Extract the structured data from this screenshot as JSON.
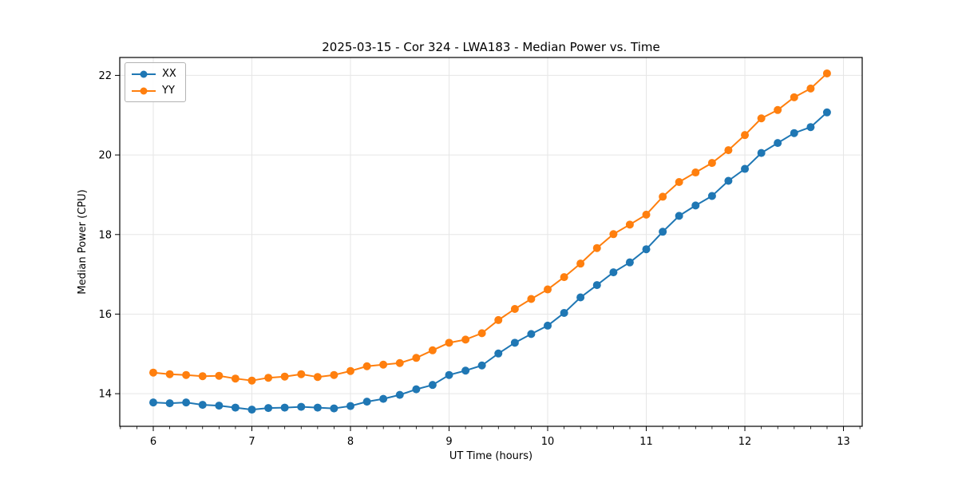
{
  "chart_data": {
    "type": "line",
    "title": "2025-03-15 - Cor 324 - LWA183 - Median Power vs. Time",
    "xlabel": "UT Time (hours)",
    "ylabel": "Median Power (CPU)",
    "xlim": [
      5.66,
      13.19
    ],
    "ylim": [
      13.18,
      22.45
    ],
    "xticks": [
      6,
      7,
      8,
      9,
      10,
      11,
      12,
      13
    ],
    "yticks": [
      14,
      16,
      18,
      20,
      22
    ],
    "x_minor_tick_step": 0.16667,
    "grid": true,
    "grid_color": "#e6e6e6",
    "legend_position": "upper left",
    "marker": "circle",
    "x": [
      6,
      6.167,
      6.333,
      6.5,
      6.667,
      6.833,
      7,
      7.167,
      7.333,
      7.5,
      7.667,
      7.833,
      8,
      8.167,
      8.333,
      8.5,
      8.667,
      8.833,
      9,
      9.167,
      9.333,
      9.5,
      9.667,
      9.833,
      10,
      10.167,
      10.333,
      10.5,
      10.667,
      10.833,
      11,
      11.167,
      11.333,
      11.5,
      11.667,
      11.833,
      12,
      12.167,
      12.333,
      12.5,
      12.667,
      12.833
    ],
    "series": [
      {
        "name": "XX",
        "color": "#1f77b4",
        "values": [
          13.78,
          13.76,
          13.78,
          13.72,
          13.7,
          13.65,
          13.6,
          13.64,
          13.65,
          13.67,
          13.65,
          13.63,
          13.69,
          13.8,
          13.87,
          13.97,
          14.11,
          14.22,
          14.47,
          14.58,
          14.71,
          15.01,
          15.28,
          15.5,
          15.71,
          16.03,
          16.42,
          16.73,
          17.05,
          17.3,
          17.63,
          18.07,
          18.47,
          18.73,
          18.97,
          19.35,
          19.65,
          20.05,
          20.3,
          20.55,
          20.7,
          21.07
        ]
      },
      {
        "name": "YY",
        "color": "#ff7f0e",
        "values": [
          14.53,
          14.49,
          14.47,
          14.44,
          14.45,
          14.38,
          14.33,
          14.4,
          14.43,
          14.49,
          14.42,
          14.47,
          14.57,
          14.69,
          14.73,
          14.77,
          14.9,
          15.09,
          15.28,
          15.36,
          15.52,
          15.85,
          16.13,
          16.38,
          16.62,
          16.93,
          17.27,
          17.66,
          18.01,
          18.25,
          18.5,
          18.95,
          19.32,
          19.56,
          19.8,
          20.12,
          20.5,
          20.92,
          21.13,
          21.45,
          21.67,
          22.05
        ]
      }
    ]
  }
}
